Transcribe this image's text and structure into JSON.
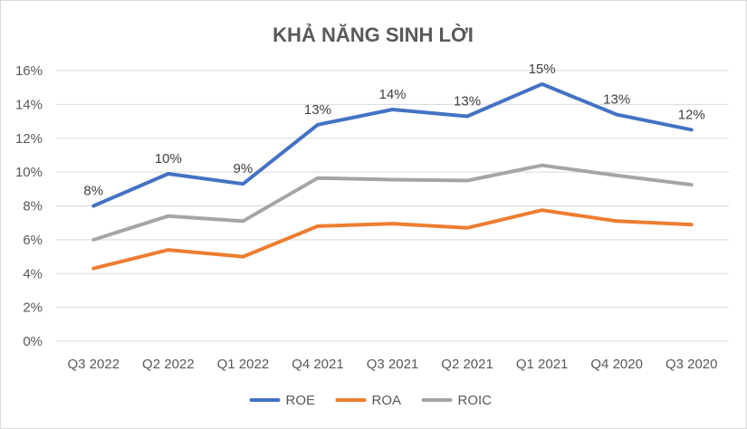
{
  "chart_data": {
    "type": "line",
    "title": "KHẢ NĂNG SINH LỜI",
    "categories": [
      "Q3 2022",
      "Q2 2022",
      "Q1 2022",
      "Q4 2021",
      "Q3 2021",
      "Q2 2021",
      "Q1 2021",
      "Q4 2020",
      "Q3 2020"
    ],
    "y_ticks": [
      "0%",
      "2%",
      "4%",
      "6%",
      "8%",
      "10%",
      "12%",
      "14%",
      "16%"
    ],
    "ylim": [
      0,
      16
    ],
    "grid": true,
    "legend_position": "bottom",
    "series": [
      {
        "name": "ROE",
        "color": "#4472C4",
        "values": [
          8.0,
          9.9,
          9.3,
          12.8,
          13.7,
          13.3,
          15.2,
          13.4,
          12.5
        ],
        "data_labels": [
          "8%",
          "10%",
          "9%",
          "13%",
          "14%",
          "13%",
          "15%",
          "13%",
          "12%"
        ]
      },
      {
        "name": "ROA",
        "color": "#ED7D31",
        "values": [
          4.3,
          5.4,
          5.0,
          6.8,
          6.95,
          6.7,
          7.75,
          7.1,
          6.9
        ]
      },
      {
        "name": "ROIC",
        "color": "#A5A5A5",
        "values": [
          6.0,
          7.4,
          7.1,
          9.65,
          9.55,
          9.5,
          10.4,
          9.8,
          9.25
        ]
      }
    ]
  }
}
